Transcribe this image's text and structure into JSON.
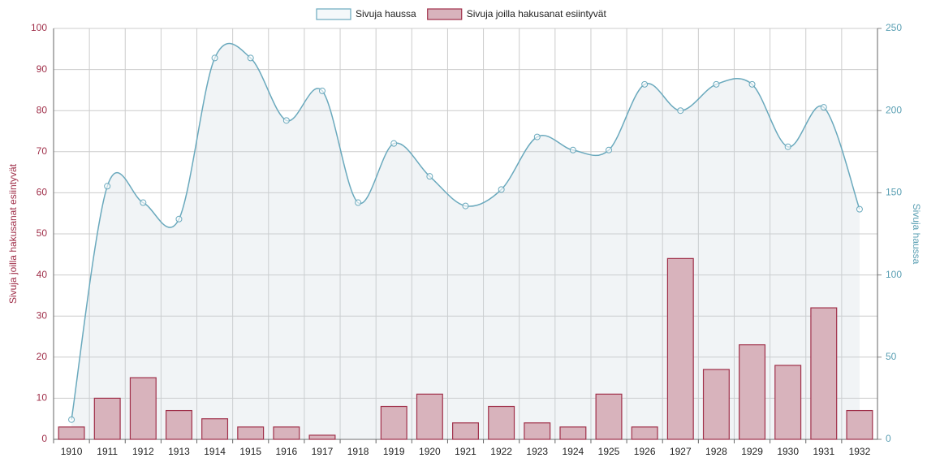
{
  "chart_data": {
    "type": "bar-line",
    "categories": [
      "1910",
      "1911",
      "1912",
      "1913",
      "1914",
      "1915",
      "1916",
      "1917",
      "1918",
      "1919",
      "1920",
      "1921",
      "1922",
      "1923",
      "1924",
      "1925",
      "1926",
      "1927",
      "1928",
      "1929",
      "1930",
      "1931",
      "1932"
    ],
    "series": [
      {
        "name": "Sivuja haussa",
        "type": "line",
        "axis": "y2",
        "color": "#6aa9bd",
        "values": [
          12,
          154,
          144,
          134,
          232,
          232,
          194,
          212,
          144,
          180,
          160,
          142,
          152,
          184,
          176,
          176,
          216,
          200,
          216,
          216,
          178,
          202,
          140
        ]
      },
      {
        "name": "Sivuja joilla hakusanat esiintyvät",
        "type": "bar",
        "axis": "y",
        "color": "#a0304a",
        "values": [
          3,
          10,
          15,
          7,
          5,
          3,
          3,
          1,
          0,
          8,
          11,
          4,
          8,
          4,
          3,
          11,
          3,
          44,
          17,
          23,
          18,
          32,
          7
        ]
      }
    ],
    "ylabel": "Sivuja joilla hakusanat esiintyvät",
    "y2label": "Sivuja haussa",
    "ylim": [
      0,
      100
    ],
    "yticks": [
      0,
      10,
      20,
      30,
      40,
      50,
      60,
      70,
      80,
      90,
      100
    ],
    "y2lim": [
      0,
      250
    ],
    "y2ticks": [
      0,
      50,
      100,
      150,
      200,
      250
    ],
    "grid": true,
    "legend": "top"
  }
}
